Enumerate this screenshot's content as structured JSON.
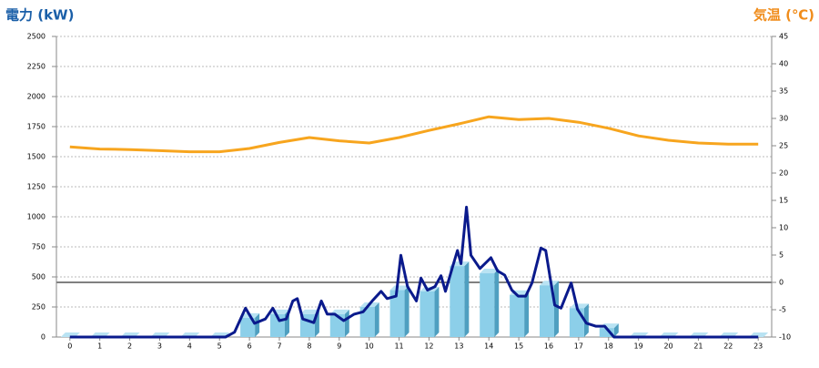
{
  "chart_data": {
    "type": "combo",
    "y_label": "電力 (kW)",
    "y2_label": "気温 (℃)",
    "y_label_color": "#1a5fa8",
    "y2_label_color": "#f08c1a",
    "xlim": [
      -0.45,
      23.45
    ],
    "xticks": [
      0,
      1,
      2,
      3,
      4,
      5,
      6,
      7,
      8,
      9,
      10,
      11,
      12,
      13,
      14,
      15,
      16,
      17,
      18,
      19,
      20,
      21,
      22,
      23
    ],
    "ylim": [
      0,
      2500
    ],
    "yticks": [
      0,
      250,
      500,
      750,
      1000,
      1250,
      1500,
      1750,
      2000,
      2250,
      2500
    ],
    "y2lim": [
      -10,
      45
    ],
    "y2ticks": [
      -10,
      -5,
      0,
      5,
      10,
      15,
      20,
      25,
      30,
      35,
      40,
      45
    ],
    "grid": true,
    "y2_zero_line": true,
    "series": [
      {
        "kind": "bar",
        "color": "#8ccfe9",
        "x": [
          0,
          1,
          2,
          3,
          4,
          5,
          6,
          7,
          8,
          9,
          10,
          11,
          12,
          13,
          14,
          15,
          16,
          17,
          18,
          19,
          20,
          21,
          22,
          23
        ],
        "values": [
          0,
          0,
          0,
          0,
          0,
          0,
          160,
          190,
          190,
          190,
          250,
          390,
          380,
          590,
          530,
          350,
          430,
          240,
          75,
          0,
          0,
          0,
          0,
          0
        ]
      },
      {
        "kind": "line",
        "color": "#0a1a8c",
        "x": [
          0,
          5.2,
          5.5,
          5.87,
          6.17,
          6.53,
          6.78,
          7.0,
          7.23,
          7.45,
          7.6,
          7.78,
          8.15,
          8.4,
          8.6,
          8.85,
          9.15,
          9.5,
          9.8,
          10.1,
          10.4,
          10.6,
          10.9,
          11.06,
          11.28,
          11.58,
          11.73,
          11.95,
          12.2,
          12.4,
          12.55,
          12.77,
          12.95,
          13.07,
          13.25,
          13.4,
          13.7,
          14.07,
          14.29,
          14.53,
          14.77,
          14.98,
          15.23,
          15.44,
          15.74,
          15.9,
          16.05,
          16.2,
          16.41,
          16.75,
          16.96,
          17.26,
          17.57,
          17.87,
          18.18,
          23
        ],
        "values": [
          0,
          0,
          40,
          240,
          114,
          150,
          240,
          136,
          150,
          300,
          320,
          150,
          120,
          300,
          190,
          190,
          136,
          190,
          210,
          300,
          380,
          320,
          340,
          680,
          420,
          300,
          490,
          390,
          420,
          510,
          380,
          570,
          720,
          610,
          1080,
          680,
          570,
          660,
          550,
          515,
          390,
          340,
          340,
          450,
          740,
          720,
          490,
          265,
          240,
          450,
          230,
          115,
          90,
          90,
          0,
          0
        ]
      },
      {
        "kind": "line",
        "axis": "y2",
        "color": "#f7a51e",
        "x": [
          0,
          1,
          2,
          3,
          4,
          5,
          6,
          7,
          8,
          9,
          10,
          11,
          12,
          13,
          14,
          15,
          16,
          17,
          18,
          19,
          20,
          21,
          22,
          23
        ],
        "values": [
          24.8,
          24.4,
          24.3,
          24.1,
          23.9,
          23.9,
          24.5,
          25.6,
          26.5,
          25.9,
          25.5,
          26.5,
          27.8,
          29,
          30.3,
          29.8,
          30,
          29.3,
          28.2,
          26.8,
          26,
          25.5,
          25.3,
          25.3
        ]
      }
    ]
  }
}
